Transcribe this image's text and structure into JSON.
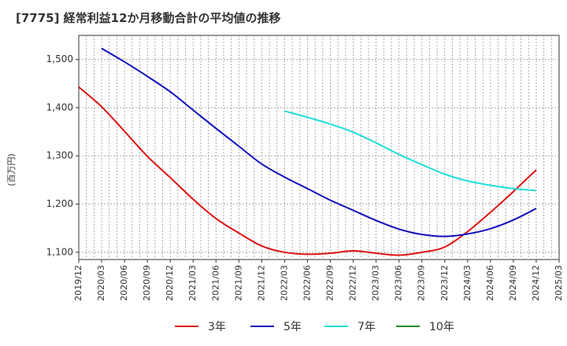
{
  "chart_data": {
    "type": "line",
    "title": "[7775]  経常利益12か月移動合計の平均値の推移",
    "ylabel": "(百万円)",
    "xlabel": "",
    "ylim": [
      1085,
      1550
    ],
    "yticks": [
      1100,
      1200,
      1300,
      1400,
      1500
    ],
    "ytick_labels": [
      "1,100",
      "1,200",
      "1,300",
      "1,400",
      "1,500"
    ],
    "xlim": [
      "2019-12",
      "2025-03"
    ],
    "xtick_labels": [
      "2019/12",
      "2020/03",
      "2020/06",
      "2020/09",
      "2020/12",
      "2021/03",
      "2021/06",
      "2021/09",
      "2021/12",
      "2022/03",
      "2022/06",
      "2022/09",
      "2022/12",
      "2023/03",
      "2023/06",
      "2023/09",
      "2023/12",
      "2024/03",
      "2024/06",
      "2024/09",
      "2024/12",
      "2025/03"
    ],
    "grid": true,
    "legend_position": "bottom",
    "series": [
      {
        "name": "3年",
        "color": "#dd1111",
        "points": [
          [
            "2019-12",
            1443
          ],
          [
            "2020-03",
            1402
          ],
          [
            "2020-06",
            1351
          ],
          [
            "2020-09",
            1299
          ],
          [
            "2020-12",
            1255
          ],
          [
            "2021-03",
            1210
          ],
          [
            "2021-06",
            1170
          ],
          [
            "2021-09",
            1140
          ],
          [
            "2021-12",
            1113
          ],
          [
            "2022-03",
            1100
          ],
          [
            "2022-06",
            1096
          ],
          [
            "2022-09",
            1098
          ],
          [
            "2022-12",
            1103
          ],
          [
            "2023-03",
            1098
          ],
          [
            "2023-06",
            1094
          ],
          [
            "2023-09",
            1100
          ],
          [
            "2023-12",
            1111
          ],
          [
            "2024-03",
            1143
          ],
          [
            "2024-06",
            1183
          ],
          [
            "2024-09",
            1226
          ],
          [
            "2024-12",
            1271
          ]
        ]
      },
      {
        "name": "5年",
        "color": "#1111bb",
        "points": [
          [
            "2020-03",
            1523
          ],
          [
            "2020-06",
            1495
          ],
          [
            "2020-09",
            1465
          ],
          [
            "2020-12",
            1433
          ],
          [
            "2021-03",
            1395
          ],
          [
            "2021-06",
            1357
          ],
          [
            "2021-09",
            1320
          ],
          [
            "2021-12",
            1283
          ],
          [
            "2022-03",
            1256
          ],
          [
            "2022-06",
            1232
          ],
          [
            "2022-09",
            1208
          ],
          [
            "2022-12",
            1187
          ],
          [
            "2023-03",
            1166
          ],
          [
            "2023-06",
            1148
          ],
          [
            "2023-09",
            1137
          ],
          [
            "2023-12",
            1133
          ],
          [
            "2024-03",
            1138
          ],
          [
            "2024-06",
            1149
          ],
          [
            "2024-09",
            1167
          ],
          [
            "2024-12",
            1191
          ]
        ]
      },
      {
        "name": "7年",
        "color": "#22dddd",
        "points": [
          [
            "2022-03",
            1393
          ],
          [
            "2022-06",
            1380
          ],
          [
            "2022-09",
            1366
          ],
          [
            "2022-12",
            1349
          ],
          [
            "2023-03",
            1327
          ],
          [
            "2023-06",
            1303
          ],
          [
            "2023-09",
            1282
          ],
          [
            "2023-12",
            1262
          ],
          [
            "2024-03",
            1248
          ],
          [
            "2024-06",
            1239
          ],
          [
            "2024-09",
            1232
          ],
          [
            "2024-12",
            1228
          ]
        ]
      },
      {
        "name": "10年",
        "color": "#228822",
        "points": []
      }
    ]
  }
}
